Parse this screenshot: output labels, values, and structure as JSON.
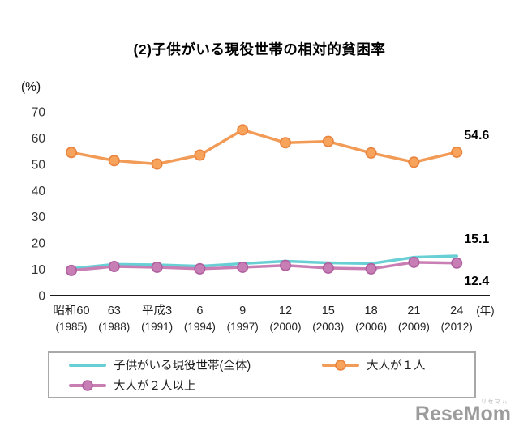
{
  "title": "(2)子供がいる現役世帯の相対的貧困率",
  "chart_data": {
    "type": "line",
    "title": "(2)子供がいる現役世帯の相対的貧困率",
    "ylabel": "(%)",
    "x_unit": "(年)",
    "ylim": [
      0,
      70
    ],
    "yticks": [
      0,
      10,
      20,
      30,
      40,
      50,
      60,
      70
    ],
    "grid": false,
    "legend_position": "bottom-box",
    "categories": [
      {
        "era": "昭和60",
        "year": "(1985)"
      },
      {
        "era": "63",
        "year": "(1988)"
      },
      {
        "era": "平成3",
        "year": "(1991)"
      },
      {
        "era": "6",
        "year": "(1994)"
      },
      {
        "era": "9",
        "year": "(1997)"
      },
      {
        "era": "12",
        "year": "(2000)"
      },
      {
        "era": "15",
        "year": "(2003)"
      },
      {
        "era": "18",
        "year": "(2006)"
      },
      {
        "era": "21",
        "year": "(2009)"
      },
      {
        "era": "24",
        "year": "(2012)"
      }
    ],
    "series": [
      {
        "name": "子供がいる現役世帯(全体)",
        "color": "#68CFD4",
        "marker": false,
        "values": [
          10.3,
          11.9,
          11.7,
          11.2,
          12.2,
          13.1,
          12.5,
          12.2,
          14.6,
          15.1
        ],
        "end_label": "15.1",
        "label_side": "above"
      },
      {
        "name": "大人が１人",
        "color": "#F29B57",
        "marker": true,
        "marker_fill": "#F7A35C",
        "marker_stroke": "#E8823C",
        "values": [
          54.5,
          51.4,
          50.1,
          53.5,
          63.1,
          58.2,
          58.7,
          54.3,
          50.8,
          54.6
        ],
        "end_label": "54.6",
        "label_side": "above"
      },
      {
        "name": "大人が２人以上",
        "color": "#C97EB4",
        "marker": true,
        "marker_fill": "#C77EB5",
        "marker_stroke": "#AF5E9E",
        "values": [
          9.6,
          11.1,
          10.8,
          10.2,
          10.8,
          11.5,
          10.5,
          10.2,
          12.7,
          12.4
        ],
        "end_label": "12.4",
        "label_side": "below"
      }
    ]
  },
  "watermark": {
    "name": "ReseMom",
    "kana": "リセマム"
  }
}
